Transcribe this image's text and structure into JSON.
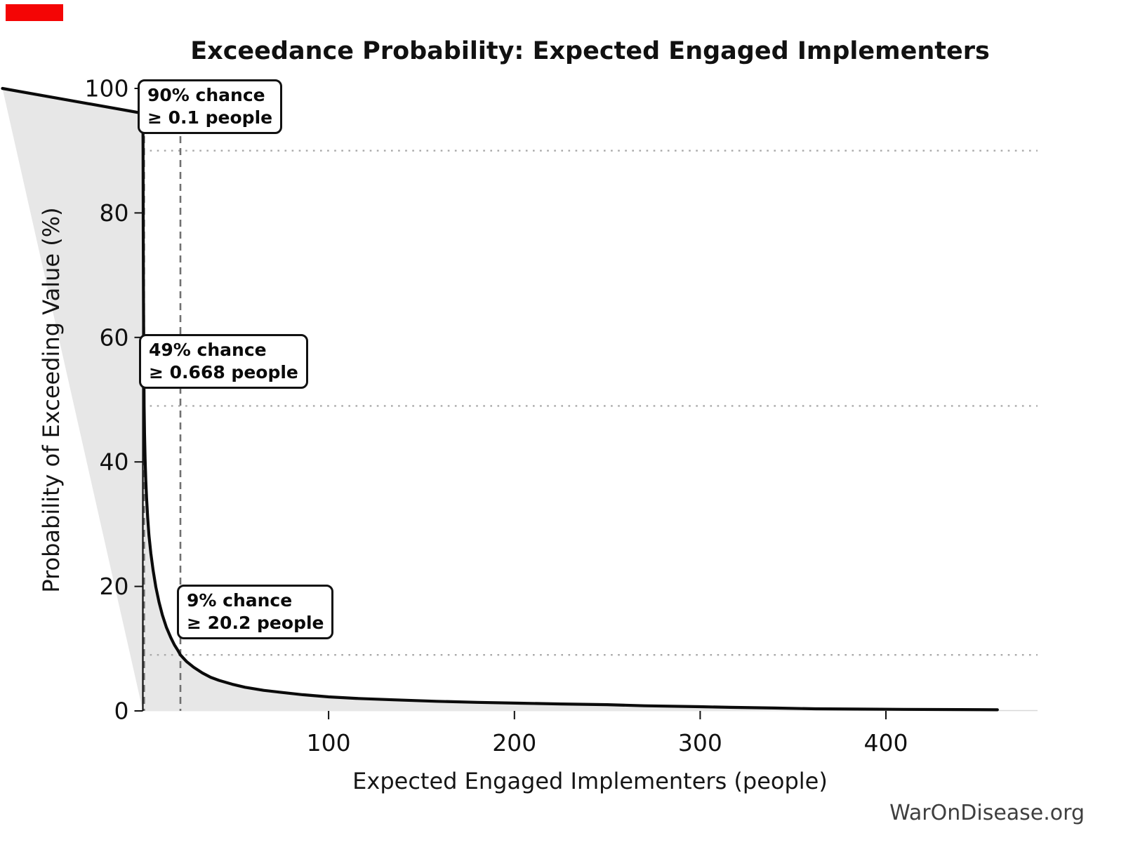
{
  "marker": {
    "color": "#f40505"
  },
  "title": "Exceedance Probability: Expected Engaged Implementers",
  "watermark": "WarOnDisease.org",
  "chart_data": {
    "type": "line",
    "title": "Exceedance Probability: Expected Engaged Implementers",
    "xlabel": "Expected Engaged Implementers (people)",
    "ylabel": "Probability of Exceeding Value (%)",
    "xlim": [
      0,
      482
    ],
    "ylim": [
      0,
      100
    ],
    "x_ticks": [
      100,
      200,
      300,
      400
    ],
    "y_ticks": [
      0,
      20,
      40,
      60,
      80,
      100
    ],
    "grid": "off (dotted/dashed reference lines only)",
    "legend": "none",
    "line_color": "#0b0b0b",
    "fill_color": "#e7e7e7",
    "dotted_line_color": "#a9a9a9",
    "dashed_line_color": "#707070",
    "series": [
      {
        "name": "exceedance-probability",
        "x": [
          0,
          0.05,
          0.1,
          0.2,
          0.3,
          0.45,
          0.668,
          0.9,
          1.2,
          1.6,
          2,
          2.6,
          3.3,
          4.3,
          5.5,
          7,
          8.7,
          10.5,
          12.7,
          15,
          17,
          18.7,
          20.2,
          23.6,
          27.4,
          32,
          36.5,
          41,
          48,
          55,
          65,
          74,
          86,
          100,
          116,
          135,
          158,
          180,
          203,
          225,
          250,
          270,
          300,
          316,
          340,
          362,
          384,
          410,
          440,
          460
        ],
        "y": [
          100,
          96,
          90,
          78,
          69,
          60,
          49,
          44.5,
          40.5,
          37,
          34.2,
          31,
          28.2,
          25.3,
          22.6,
          19.9,
          17.5,
          15.4,
          13.4,
          11.8,
          10.6,
          9.8,
          9,
          7.9,
          7.0,
          6.1,
          5.4,
          4.9,
          4.3,
          3.8,
          3.3,
          3.0,
          2.6,
          2.25,
          2.0,
          1.78,
          1.55,
          1.38,
          1.24,
          1.12,
          1.0,
          0.82,
          0.68,
          0.57,
          0.46,
          0.34,
          0.29,
          0.25,
          0.21,
          0.18
        ]
      }
    ],
    "reference_lines": {
      "horizontal_pct": [
        90,
        49,
        9
      ],
      "vertical_people": [
        0.1,
        0.668,
        20.2
      ]
    },
    "annotations": [
      {
        "line1": "90% chance",
        "line2": "≥ 0.1 people",
        "probability_pct": 90,
        "value_people": 0.1
      },
      {
        "line1": "49% chance",
        "line2": "≥ 0.668 people",
        "probability_pct": 49,
        "value_people": 0.668
      },
      {
        "line1": "9% chance",
        "line2": "≥ 20.2 people",
        "probability_pct": 9,
        "value_people": 20.2
      }
    ]
  }
}
